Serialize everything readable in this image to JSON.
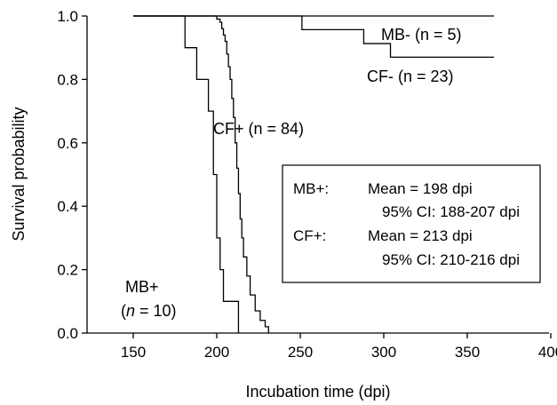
{
  "chart_data": {
    "type": "line",
    "subtype": "kaplan-meier step curves",
    "xlabel": "Incubation time (dpi)",
    "ylabel": "Survival probability",
    "xlim": [
      150,
      400
    ],
    "ylim": [
      0,
      1
    ],
    "x_ticks": [
      "150",
      "200",
      "250",
      "300",
      "350",
      "400"
    ],
    "y_ticks": [
      "0.0",
      "0.2",
      "0.4",
      "0.6",
      "0.8",
      "1.0"
    ],
    "grid": false,
    "line_color": "#000000",
    "series": [
      {
        "name": "MB- (n = 5)",
        "x": [
          150,
          366
        ],
        "y": [
          1.0,
          1.0
        ]
      },
      {
        "name": "CF- (n = 23)",
        "x": [
          150,
          251,
          251,
          288,
          288,
          304,
          304,
          366
        ],
        "y": [
          1.0,
          1.0,
          0.957,
          0.957,
          0.913,
          0.913,
          0.87,
          0.87
        ]
      },
      {
        "name": "MB+",
        "name_line2_prefix": "(",
        "name_line2_italic": "n",
        "name_line2_suffix": " = 10)",
        "x": [
          150,
          181,
          181,
          188,
          188,
          195,
          195,
          198,
          198,
          200,
          200,
          202,
          202,
          204,
          204,
          213,
          213
        ],
        "y": [
          1.0,
          1.0,
          0.9,
          0.9,
          0.8,
          0.8,
          0.7,
          0.7,
          0.5,
          0.5,
          0.3,
          0.3,
          0.2,
          0.2,
          0.1,
          0.1,
          0.0
        ]
      },
      {
        "name": "CF+ (n = 84)",
        "x": [
          150,
          198,
          200,
          202,
          203,
          204,
          205,
          206,
          207,
          208,
          209,
          210,
          211,
          212,
          213,
          214,
          215,
          216,
          218,
          220,
          223,
          226,
          229,
          231
        ],
        "y": [
          1.0,
          1.0,
          0.99,
          0.98,
          0.96,
          0.94,
          0.92,
          0.88,
          0.84,
          0.8,
          0.74,
          0.68,
          0.6,
          0.52,
          0.44,
          0.36,
          0.3,
          0.24,
          0.18,
          0.12,
          0.07,
          0.04,
          0.02,
          0.0
        ]
      }
    ],
    "stats_box": {
      "mb_label": "MB+:",
      "mb_mean": "Mean = 198 dpi",
      "mb_ci": "95% CI: 188-207 dpi",
      "cf_label": "CF+:",
      "cf_mean": "Mean = 213 dpi",
      "cf_ci": "95% CI: 210-216 dpi"
    }
  }
}
